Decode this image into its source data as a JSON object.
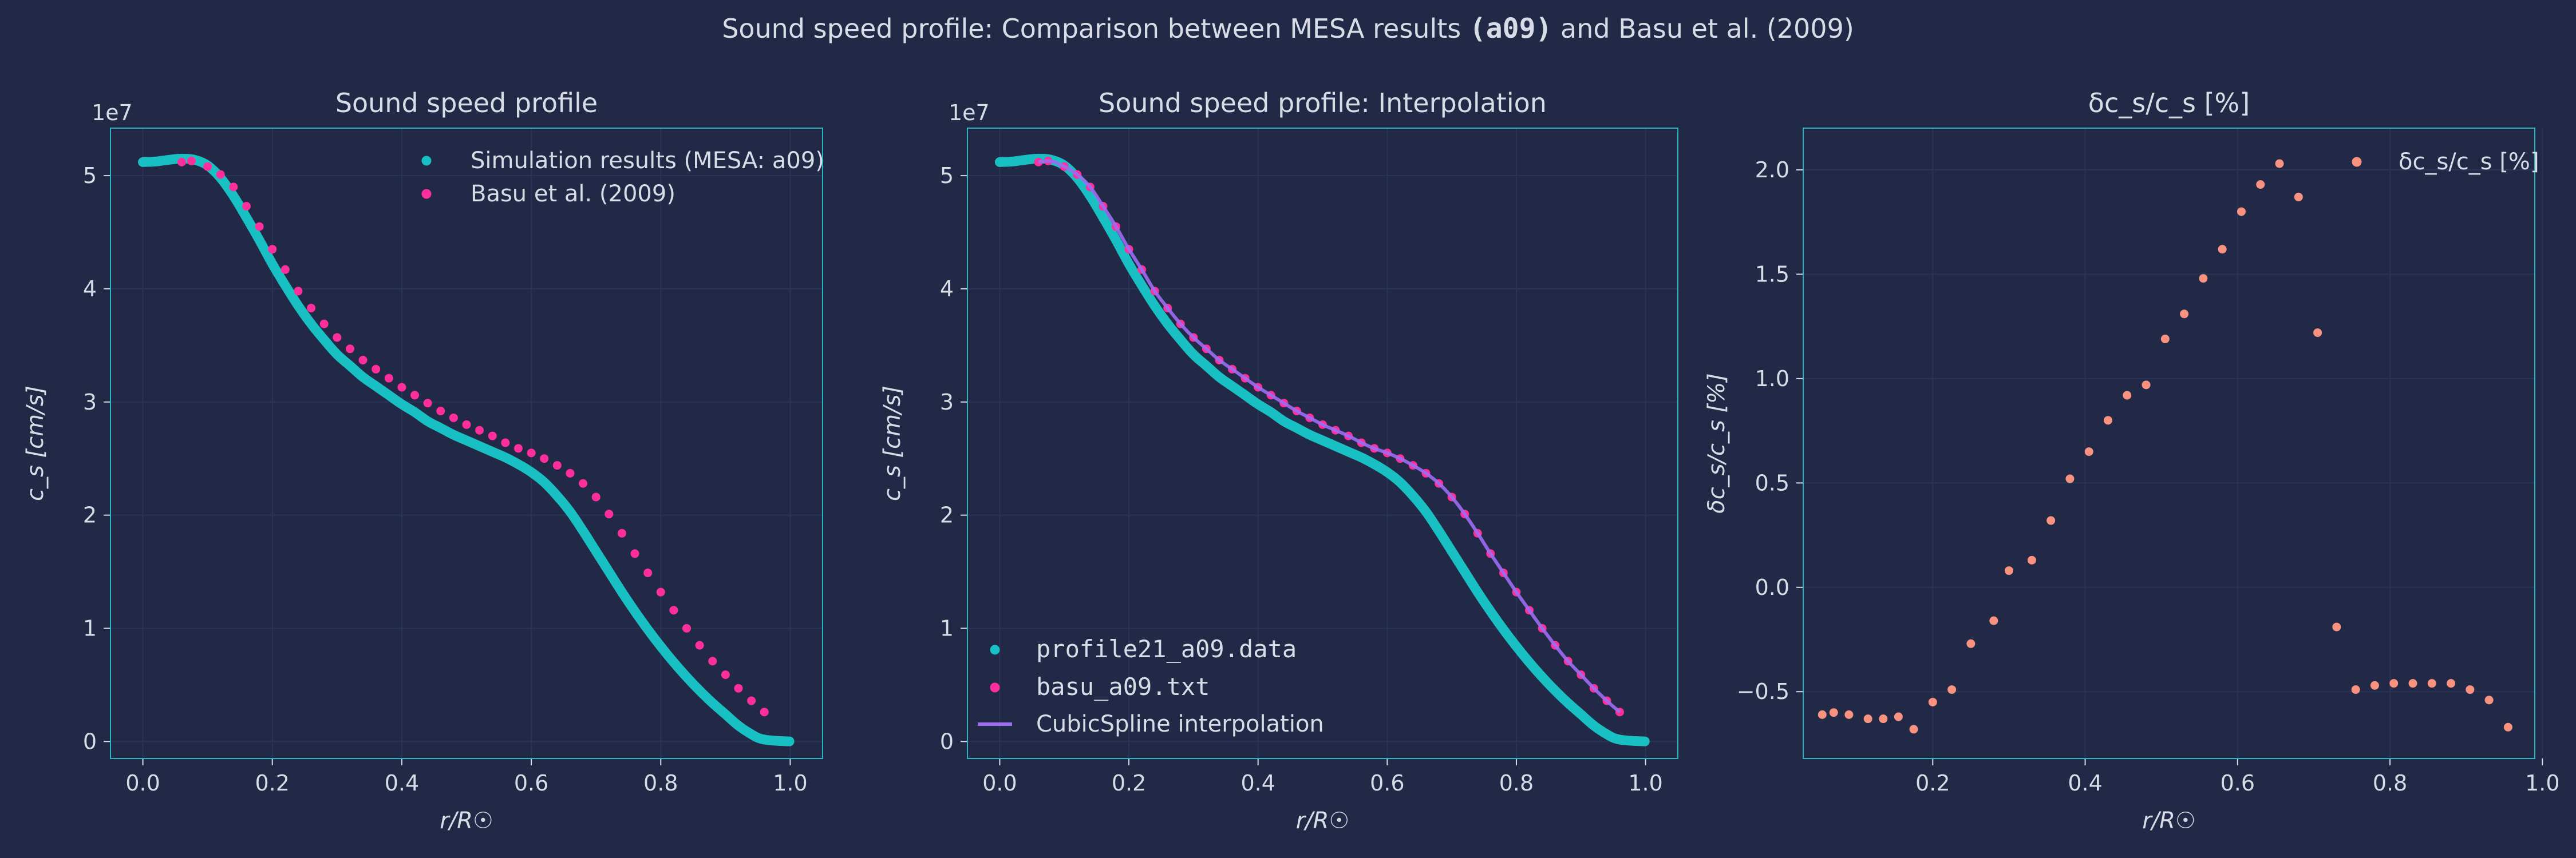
{
  "figure": {
    "suptitle_pre": "Sound speed profile: Comparison between MESA results",
    "suptitle_bold": "(a09)",
    "suptitle_post": "and Basu et al. (2009)",
    "colors": {
      "background": "#212946",
      "grid": "#2A3459",
      "spine": "#2BB5C0",
      "text": "#d8dce6",
      "mesa": "#18c0c4",
      "basu": "#fe2f9c",
      "spline": "#9d6cf2",
      "diff": "#f9937f"
    }
  },
  "chart_data": [
    {
      "type": "scatter",
      "title": "Sound speed profile",
      "xlabel": "r/R☉",
      "ylabel": "c_s [cm/s]",
      "offset_text": "1e7",
      "xlim": [
        -0.05,
        1.05
      ],
      "ylim": [
        -0.15,
        5.42
      ],
      "xticks": [
        0.0,
        0.2,
        0.4,
        0.6,
        0.8,
        1.0
      ],
      "yticks": [
        0,
        1,
        2,
        3,
        4,
        5
      ],
      "grid": true,
      "legend_position": "top-right",
      "series": [
        {
          "name": "Simulation results (MESA: a09)",
          "style": "dense-dots",
          "color": "#18c0c4",
          "points": [
            [
              0.0,
              5.12
            ],
            [
              0.02,
              5.125
            ],
            [
              0.04,
              5.14
            ],
            [
              0.06,
              5.15
            ],
            [
              0.08,
              5.14
            ],
            [
              0.1,
              5.09
            ],
            [
              0.12,
              4.98
            ],
            [
              0.14,
              4.82
            ],
            [
              0.16,
              4.63
            ],
            [
              0.18,
              4.43
            ],
            [
              0.2,
              4.22
            ],
            [
              0.22,
              4.03
            ],
            [
              0.24,
              3.85
            ],
            [
              0.26,
              3.69
            ],
            [
              0.28,
              3.55
            ],
            [
              0.3,
              3.42
            ],
            [
              0.32,
              3.32
            ],
            [
              0.34,
              3.22
            ],
            [
              0.36,
              3.14
            ],
            [
              0.38,
              3.06
            ],
            [
              0.4,
              2.98
            ],
            [
              0.42,
              2.91
            ],
            [
              0.44,
              2.83
            ],
            [
              0.46,
              2.77
            ],
            [
              0.48,
              2.71
            ],
            [
              0.5,
              2.66
            ],
            [
              0.52,
              2.61
            ],
            [
              0.54,
              2.56
            ],
            [
              0.56,
              2.51
            ],
            [
              0.58,
              2.45
            ],
            [
              0.6,
              2.38
            ],
            [
              0.62,
              2.29
            ],
            [
              0.64,
              2.17
            ],
            [
              0.66,
              2.03
            ],
            [
              0.68,
              1.86
            ],
            [
              0.7,
              1.68
            ],
            [
              0.72,
              1.5
            ],
            [
              0.74,
              1.32
            ],
            [
              0.76,
              1.15
            ],
            [
              0.78,
              0.99
            ],
            [
              0.8,
              0.84
            ],
            [
              0.82,
              0.7
            ],
            [
              0.84,
              0.57
            ],
            [
              0.86,
              0.45
            ],
            [
              0.88,
              0.34
            ],
            [
              0.9,
              0.24
            ],
            [
              0.92,
              0.14
            ],
            [
              0.94,
              0.064
            ],
            [
              0.95,
              0.033
            ],
            [
              0.96,
              0.017
            ],
            [
              0.97,
              0.0099
            ],
            [
              0.98,
              0.0054
            ],
            [
              0.99,
              0.0029
            ],
            [
              1.0,
              0.0008
            ]
          ]
        },
        {
          "name": "Basu et al. (2009)",
          "style": "dots",
          "color": "#fe2f9c",
          "points": [
            [
              0.06,
              5.12
            ],
            [
              0.075,
              5.13
            ],
            [
              0.1,
              5.08
            ],
            [
              0.12,
              5.01
            ],
            [
              0.14,
              4.9
            ],
            [
              0.16,
              4.73
            ],
            [
              0.18,
              4.55
            ],
            [
              0.2,
              4.35
            ],
            [
              0.22,
              4.17
            ],
            [
              0.24,
              3.98
            ],
            [
              0.26,
              3.83
            ],
            [
              0.28,
              3.69
            ],
            [
              0.3,
              3.57
            ],
            [
              0.32,
              3.47
            ],
            [
              0.34,
              3.37
            ],
            [
              0.36,
              3.29
            ],
            [
              0.38,
              3.21
            ],
            [
              0.4,
              3.13
            ],
            [
              0.42,
              3.06
            ],
            [
              0.44,
              2.99
            ],
            [
              0.46,
              2.92
            ],
            [
              0.48,
              2.86
            ],
            [
              0.5,
              2.8
            ],
            [
              0.52,
              2.75
            ],
            [
              0.54,
              2.7
            ],
            [
              0.56,
              2.64
            ],
            [
              0.58,
              2.59
            ],
            [
              0.6,
              2.55
            ],
            [
              0.62,
              2.5
            ],
            [
              0.64,
              2.44
            ],
            [
              0.66,
              2.37
            ],
            [
              0.68,
              2.28
            ],
            [
              0.7,
              2.16
            ],
            [
              0.72,
              2.01
            ],
            [
              0.74,
              1.84
            ],
            [
              0.76,
              1.66
            ],
            [
              0.78,
              1.49
            ],
            [
              0.8,
              1.32
            ],
            [
              0.82,
              1.16
            ],
            [
              0.84,
              1.0
            ],
            [
              0.86,
              0.85
            ],
            [
              0.88,
              0.71
            ],
            [
              0.9,
              0.59
            ],
            [
              0.92,
              0.47
            ],
            [
              0.94,
              0.36
            ],
            [
              0.96,
              0.26
            ]
          ]
        }
      ]
    },
    {
      "type": "line",
      "title": "Sound speed profile: Interpolation",
      "xlabel": "r/R☉",
      "ylabel": "c_s [cm/s]",
      "offset_text": "1e7",
      "xlim": [
        -0.05,
        1.05
      ],
      "ylim": [
        -0.15,
        5.42
      ],
      "xticks": [
        0.0,
        0.2,
        0.4,
        0.6,
        0.8,
        1.0
      ],
      "yticks": [
        0,
        1,
        2,
        3,
        4,
        5
      ],
      "grid": true,
      "legend_position": "bottom-left",
      "series": [
        {
          "name": "profile21_a09.data",
          "style": "dense-dots",
          "color": "#18c0c4",
          "points": "same as MESA series"
        },
        {
          "name": "basu_a09.txt",
          "style": "dots",
          "color": "#fe2f9c",
          "points": "same as Basu series"
        },
        {
          "name": "CubicSpline interpolation",
          "style": "line",
          "color": "#9d6cf2"
        }
      ]
    },
    {
      "type": "scatter",
      "title": "δc_s/c_s [%]",
      "xlabel": "r/R☉",
      "ylabel": "δc_s/c_s [%]",
      "xlim": [
        0.03,
        0.99
      ],
      "ylim": [
        -0.82,
        2.2
      ],
      "xticks": [
        0.2,
        0.4,
        0.6,
        0.8,
        1.0
      ],
      "yticks": [
        -0.5,
        0.0,
        0.5,
        1.0,
        1.5,
        2.0
      ],
      "grid": true,
      "legend_position": "top-right",
      "series": [
        {
          "name": "δc_s/c_s [%]",
          "style": "dots",
          "color": "#f9937f",
          "points": [
            [
              0.055,
              -0.61
            ],
            [
              0.07,
              -0.6
            ],
            [
              0.09,
              -0.61
            ],
            [
              0.115,
              -0.63
            ],
            [
              0.135,
              -0.63
            ],
            [
              0.155,
              -0.62
            ],
            [
              0.175,
              -0.68
            ],
            [
              0.2,
              -0.55
            ],
            [
              0.225,
              -0.49
            ],
            [
              0.25,
              -0.27
            ],
            [
              0.28,
              -0.16
            ],
            [
              0.3,
              0.08
            ],
            [
              0.33,
              0.13
            ],
            [
              0.355,
              0.32
            ],
            [
              0.38,
              0.52
            ],
            [
              0.405,
              0.65
            ],
            [
              0.43,
              0.8
            ],
            [
              0.455,
              0.92
            ],
            [
              0.48,
              0.97
            ],
            [
              0.505,
              1.19
            ],
            [
              0.53,
              1.31
            ],
            [
              0.555,
              1.48
            ],
            [
              0.58,
              1.62
            ],
            [
              0.605,
              1.8
            ],
            [
              0.63,
              1.93
            ],
            [
              0.655,
              2.03
            ],
            [
              0.68,
              1.87
            ],
            [
              0.705,
              1.22
            ],
            [
              0.73,
              -0.19
            ],
            [
              0.755,
              -0.49
            ],
            [
              0.78,
              -0.47
            ],
            [
              0.805,
              -0.46
            ],
            [
              0.83,
              -0.46
            ],
            [
              0.855,
              -0.46
            ],
            [
              0.88,
              -0.46
            ],
            [
              0.905,
              -0.49
            ],
            [
              0.93,
              -0.54
            ],
            [
              0.955,
              -0.67
            ]
          ]
        }
      ]
    }
  ]
}
